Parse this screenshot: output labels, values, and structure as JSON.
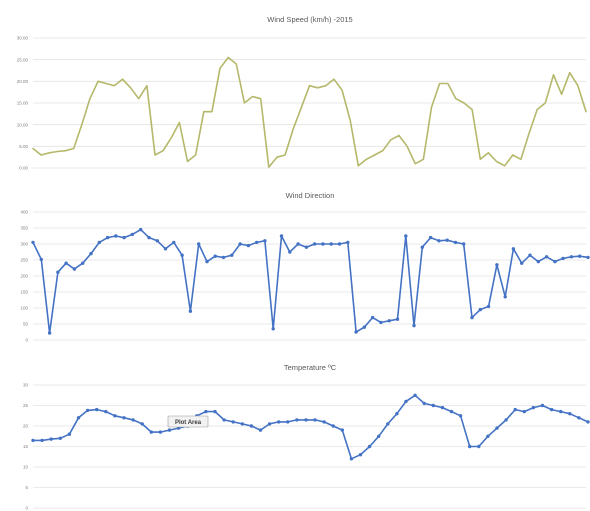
{
  "chart_data": [
    {
      "type": "line",
      "title": "Wind Speed (km/h) -2015",
      "yticks": [
        "0.00",
        "5.00",
        "10.00",
        "15.00",
        "20.00",
        "25.00",
        "30.00"
      ],
      "ylim": [
        0,
        30
      ],
      "grid": true,
      "color": "#b5b86a",
      "markers": false,
      "series": [
        {
          "values": [
            4.5,
            3,
            3.5,
            3.8,
            4,
            4.5,
            10,
            16,
            20,
            19.5,
            19,
            20.5,
            18.5,
            16,
            19,
            3,
            4,
            7,
            10.5,
            1.5,
            3,
            13,
            13,
            23,
            25.5,
            24,
            15,
            16.5,
            16,
            0.2,
            2.5,
            3,
            9,
            14,
            19,
            18.5,
            19,
            20.5,
            18,
            11,
            0.5,
            2,
            3,
            4,
            6.5,
            7.5,
            5,
            1,
            2,
            14,
            19.5,
            19.5,
            16,
            15,
            13.5,
            2,
            3.5,
            1.5,
            0.5,
            3,
            2,
            8,
            13.5,
            15,
            21.5,
            17,
            22,
            19,
            13
          ]
        }
      ]
    },
    {
      "type": "line",
      "title": "Wind Direction",
      "yticks": [
        "0",
        "50",
        "100",
        "150",
        "200",
        "250",
        "300",
        "350",
        "400"
      ],
      "ylim": [
        0,
        400
      ],
      "grid": true,
      "color": "#4472c4",
      "markers": true,
      "series": [
        {
          "values": [
            305,
            252,
            22,
            212,
            240,
            222,
            240,
            270,
            305,
            320,
            325,
            320,
            330,
            345,
            320,
            310,
            285,
            305,
            265,
            90,
            300,
            245,
            262,
            258,
            265,
            300,
            295,
            305,
            310,
            35,
            325,
            275,
            300,
            290,
            300,
            300,
            300,
            300,
            305,
            25,
            40,
            70,
            55,
            60,
            65,
            325,
            45,
            290,
            320,
            310,
            312,
            305,
            300,
            70,
            95,
            105,
            235,
            135,
            285,
            240,
            265,
            245,
            260,
            245,
            255,
            260,
            262,
            258
          ]
        }
      ]
    },
    {
      "type": "line",
      "title": "Temperature ºC",
      "yticks": [
        "0",
        "5",
        "10",
        "15",
        "20",
        "25",
        "30"
      ],
      "ylim": [
        0,
        30
      ],
      "grid": true,
      "color": "#4472c4",
      "markers": true,
      "series": [
        {
          "values": [
            16.5,
            16.5,
            16.8,
            17,
            18,
            22,
            23.8,
            24,
            23.5,
            22.5,
            22,
            21.5,
            20.5,
            18.5,
            18.5,
            19,
            19.5,
            20,
            22.5,
            23.5,
            23.5,
            21.5,
            21,
            20.5,
            20,
            19,
            20.5,
            21,
            21,
            21.5,
            21.5,
            21.5,
            21,
            20,
            19,
            12,
            13,
            15,
            17.5,
            20.5,
            23,
            26,
            27.5,
            25.5,
            25,
            24.5,
            23.5,
            22.5,
            15,
            15,
            17.5,
            19.5,
            21.5,
            24,
            23.5,
            24.5,
            25,
            24,
            23.5,
            23,
            22,
            21
          ]
        }
      ],
      "tooltip": "Plot Area"
    }
  ]
}
